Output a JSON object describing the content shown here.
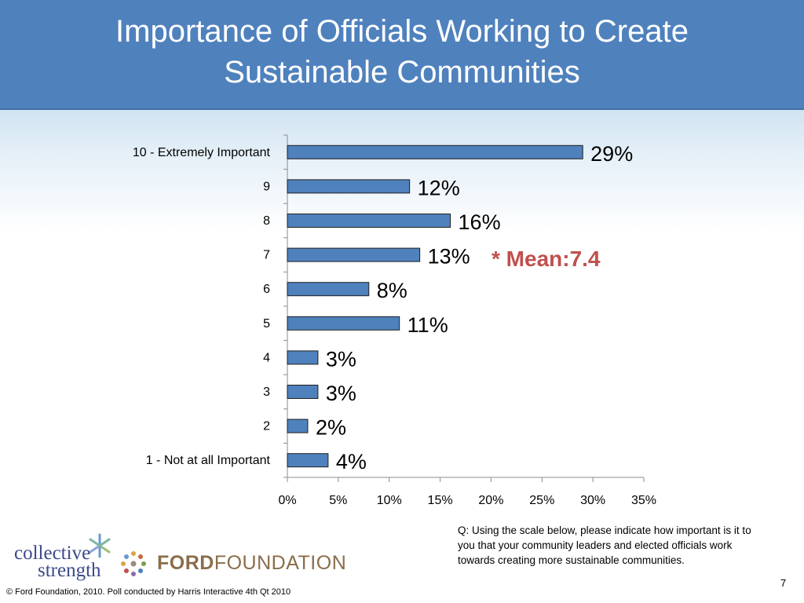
{
  "header": {
    "title_line1": "Importance of Officials Working to Create",
    "title_line2": "Sustainable Communities"
  },
  "chart_data": {
    "type": "bar",
    "orientation": "horizontal",
    "categories": [
      "10 - Extremely Important",
      "9",
      "8",
      "7",
      "6",
      "5",
      "4",
      "3",
      "2",
      "1 - Not at all Important"
    ],
    "values": [
      29,
      12,
      16,
      13,
      8,
      11,
      3,
      3,
      2,
      4
    ],
    "data_labels": [
      "29%",
      "12%",
      "16%",
      "13%",
      "8%",
      "11%",
      "3%",
      "3%",
      "2%",
      "4%"
    ],
    "xlim": [
      0,
      35
    ],
    "x_ticks": [
      0,
      5,
      10,
      15,
      20,
      25,
      30,
      35
    ],
    "x_tick_labels": [
      "0%",
      "5%",
      "10%",
      "15%",
      "20%",
      "25%",
      "30%",
      "35%"
    ],
    "bar_color": "#4f81bd",
    "grid": false,
    "legend": "none"
  },
  "annotations": {
    "mean": "* Mean:7.4",
    "question": "Q: Using the scale below, please indicate how important is it to you that your community leaders and elected officials work towards creating more sustainable communities."
  },
  "footer": {
    "copyright": "© Ford Foundation, 2010. Poll conducted by Harris Interactive 4th Qt 2010",
    "page_number": "7"
  },
  "logos": {
    "collective_strength_word1": "collective",
    "collective_strength_word2": "strength",
    "ford_bold": "FORD",
    "ford_regular": "FOUNDATION",
    "collective_icon": "asterisk-flower-icon",
    "ford_icon": "dotted-circle-icon"
  },
  "colors": {
    "title_bar": "#4f81bd",
    "mean_text": "#c0504d"
  }
}
